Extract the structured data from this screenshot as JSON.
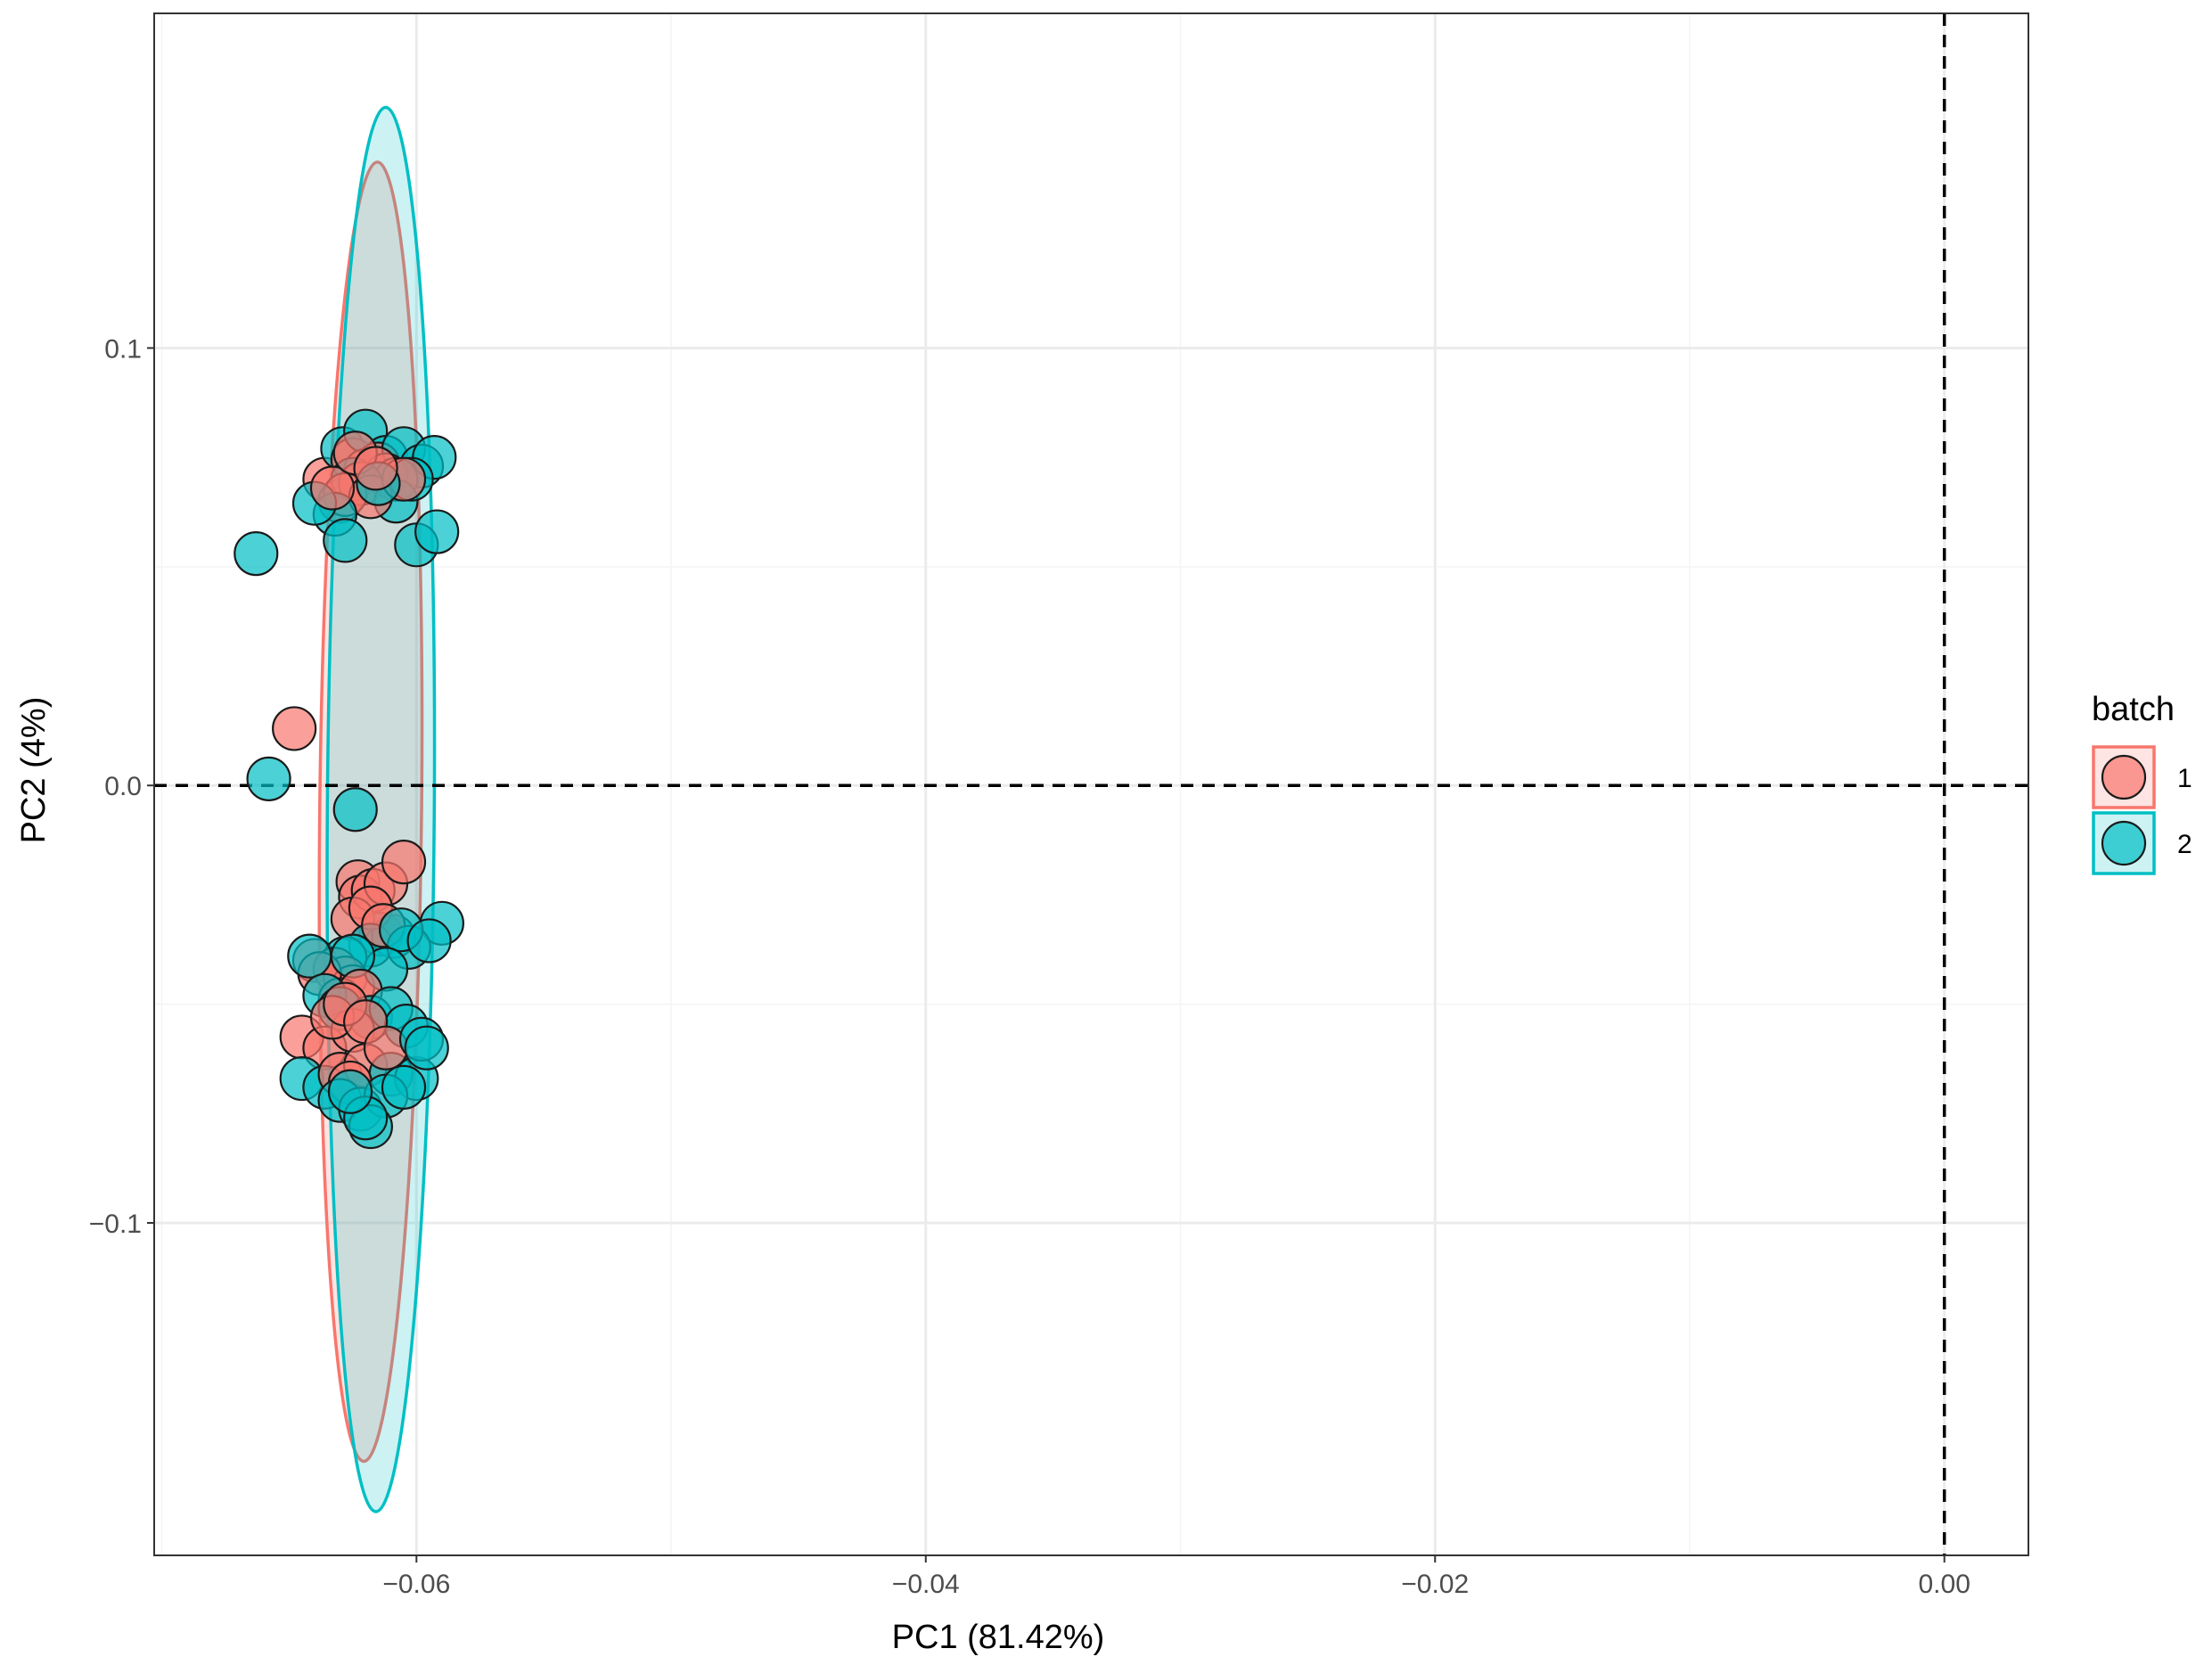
{
  "chart_data": {
    "type": "scatter",
    "xlabel": "PC1 (81.42%)",
    "ylabel": "PC2 (4%)",
    "xlim": [
      -0.0703,
      0.0033
    ],
    "ylim": [
      -0.176,
      0.1765
    ],
    "x_ticks": [
      -0.06,
      -0.04,
      -0.02,
      0.0
    ],
    "x_tick_labels": [
      "−0.06",
      "−0.04",
      "−0.02",
      "0.00"
    ],
    "y_ticks": [
      -0.1,
      0.0,
      0.1
    ],
    "y_tick_labels": [
      "−0.1",
      "0.0",
      "0.1"
    ],
    "reference_lines": {
      "x": 0,
      "y": 0,
      "style": "dashed"
    },
    "grid": true,
    "legend": {
      "title": "batch",
      "placement": "right",
      "entries": [
        "1",
        "2"
      ]
    },
    "series": [
      {
        "name": "1",
        "color": "#F8766D",
        "ellipse": {
          "cx": -0.0618,
          "cy": -0.006,
          "rx": 0.002,
          "ry": 0.1485,
          "angle_deg": 0.6
        },
        "x": [
          -0.0636,
          -0.0625,
          -0.062,
          -0.0615,
          -0.063,
          -0.0612,
          -0.0608,
          -0.0622,
          -0.0628,
          -0.0618,
          -0.0605,
          -0.0633,
          -0.0624,
          -0.0616,
          -0.0648,
          -0.0623,
          -0.0622,
          -0.0617,
          -0.0612,
          -0.0605,
          -0.0625,
          -0.0618,
          -0.0613,
          -0.064,
          -0.0632,
          -0.0628,
          -0.0625,
          -0.0638,
          -0.063,
          -0.0622,
          -0.0645,
          -0.0636,
          -0.0625,
          -0.0633,
          -0.0628,
          -0.062,
          -0.063,
          -0.062,
          -0.0612,
          -0.0626
        ],
        "y": [
          0.07,
          0.0745,
          0.072,
          0.0735,
          0.065,
          0.071,
          0.07,
          0.069,
          0.0665,
          0.066,
          0.07,
          0.068,
          0.076,
          0.0725,
          0.013,
          -0.022,
          -0.0255,
          -0.024,
          -0.0225,
          -0.0175,
          -0.0305,
          -0.028,
          -0.032,
          -0.04,
          -0.042,
          -0.044,
          -0.046,
          -0.043,
          -0.049,
          -0.047,
          -0.0575,
          -0.06,
          -0.056,
          -0.053,
          -0.05,
          -0.054,
          -0.066,
          -0.064,
          -0.06,
          -0.068
        ]
      },
      {
        "name": "2",
        "color": "#00BFC4",
        "ellipse": {
          "cx": -0.0614,
          "cy": -0.0055,
          "rx": 0.0021,
          "ry": 0.1605,
          "angle_deg": 0.4
        },
        "x": [
          -0.0629,
          -0.062,
          -0.0612,
          -0.0605,
          -0.0598,
          -0.0593,
          -0.0625,
          -0.0608,
          -0.0602,
          -0.0632,
          -0.064,
          -0.0628,
          -0.0615,
          -0.06,
          -0.0592,
          -0.0663,
          -0.0658,
          -0.0624,
          -0.0614,
          -0.0609,
          -0.059,
          -0.0618,
          -0.0603,
          -0.0628,
          -0.0606,
          -0.0595,
          -0.0612,
          -0.0625,
          -0.0642,
          -0.0636,
          -0.063,
          -0.0618,
          -0.061,
          -0.0604,
          -0.0645,
          -0.0636,
          -0.0626,
          -0.061,
          -0.06,
          -0.0598,
          -0.063,
          -0.0622,
          -0.0612,
          -0.0605,
          -0.0596,
          -0.0618,
          -0.062,
          -0.0626
        ],
        "y": [
          0.077,
          0.081,
          0.075,
          0.077,
          0.073,
          0.075,
          0.07,
          0.065,
          0.07,
          0.062,
          0.0645,
          0.056,
          0.069,
          0.055,
          0.058,
          0.053,
          0.0015,
          -0.0055,
          -0.034,
          -0.0345,
          -0.0315,
          -0.0365,
          -0.037,
          -0.0395,
          -0.033,
          -0.0355,
          -0.042,
          -0.039,
          -0.039,
          -0.048,
          -0.051,
          -0.053,
          -0.051,
          -0.055,
          -0.067,
          -0.069,
          -0.07,
          -0.066,
          -0.067,
          -0.058,
          -0.072,
          -0.074,
          -0.071,
          -0.069,
          -0.06,
          -0.078,
          -0.076,
          -0.07
        ]
      }
    ]
  }
}
